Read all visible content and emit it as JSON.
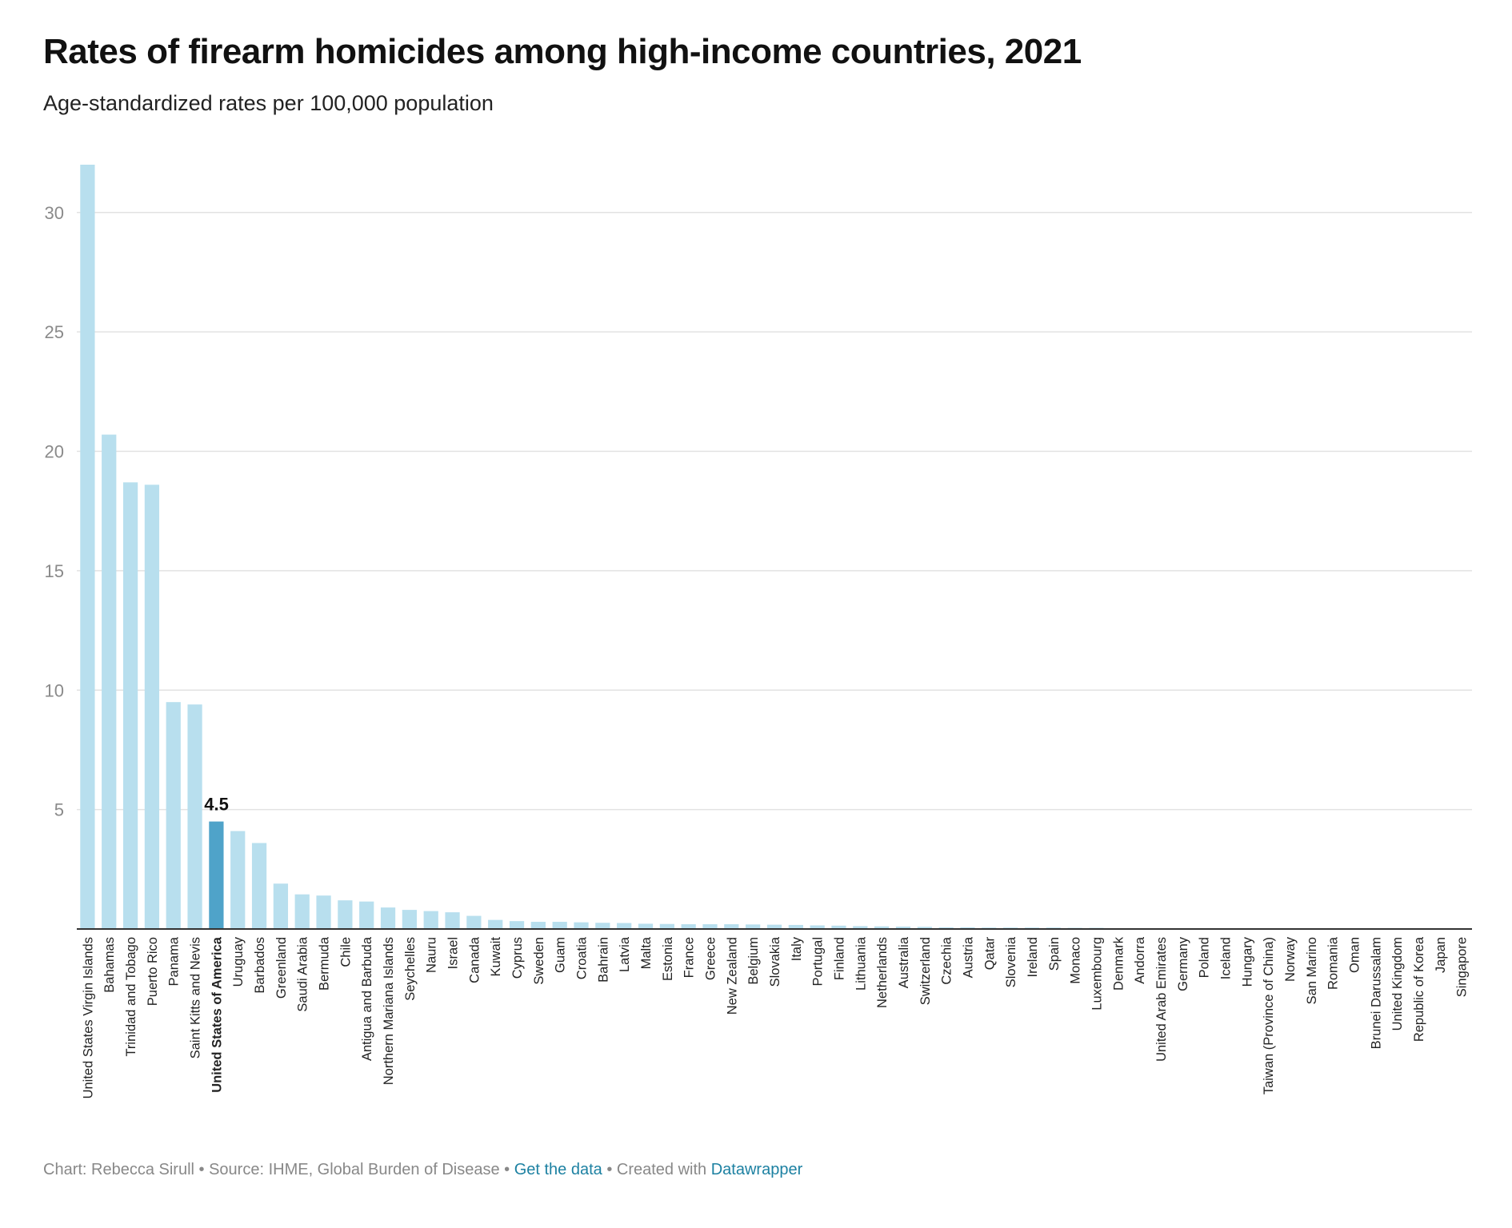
{
  "header": {
    "title": "Rates of firearm homicides among high-income countries, 2021",
    "subtitle": "Age-standardized rates per 100,000 population"
  },
  "footer": {
    "credit": "Chart: Rebecca Sirull • Source: IHME, Global Burden of Disease • ",
    "get_data_label": "Get the data",
    "created_with": " • Created with ",
    "tool_label": "Datawrapper"
  },
  "colors": {
    "bar": "#b8dfee",
    "highlight": "#4fa3c9",
    "grid": "#e2e2e2",
    "axis": "#333333",
    "tick_label": "#8a8a8a"
  },
  "chart_data": {
    "type": "bar",
    "title": "Rates of firearm homicides among high-income countries, 2021",
    "subtitle": "Age-standardized rates per 100,000 population",
    "ylim": [
      0,
      32
    ],
    "yticks": [
      5,
      10,
      15,
      20,
      25,
      30
    ],
    "grid": true,
    "highlight": {
      "category": "United States of America",
      "label": "4.5"
    },
    "categories": [
      "United States Virgin Islands",
      "Bahamas",
      "Trinidad and Tobago",
      "Puerto Rico",
      "Panama",
      "Saint Kitts and Nevis",
      "United States of America",
      "Uruguay",
      "Barbados",
      "Greenland",
      "Saudi Arabia",
      "Bermuda",
      "Chile",
      "Antigua and Barbuda",
      "Northern Mariana Islands",
      "Seychelles",
      "Nauru",
      "Israel",
      "Canada",
      "Kuwait",
      "Cyprus",
      "Sweden",
      "Guam",
      "Croatia",
      "Bahrain",
      "Latvia",
      "Malta",
      "Estonia",
      "France",
      "Greece",
      "New Zealand",
      "Belgium",
      "Slovakia",
      "Italy",
      "Portugal",
      "Finland",
      "Lithuania",
      "Netherlands",
      "Australia",
      "Switzerland",
      "Czechia",
      "Austria",
      "Qatar",
      "Slovenia",
      "Ireland",
      "Spain",
      "Monaco",
      "Luxembourg",
      "Denmark",
      "Andorra",
      "United Arab Emirates",
      "Germany",
      "Poland",
      "Iceland",
      "Hungary",
      "Taiwan (Province of China)",
      "Norway",
      "San Marino",
      "Romania",
      "Oman",
      "Brunei Darussalam",
      "United Kingdom",
      "Republic of Korea",
      "Japan",
      "Singapore"
    ],
    "values": [
      32.0,
      20.7,
      18.7,
      18.6,
      9.5,
      9.4,
      4.5,
      4.1,
      3.6,
      1.9,
      1.45,
      1.4,
      1.2,
      1.15,
      0.9,
      0.8,
      0.75,
      0.7,
      0.55,
      0.38,
      0.33,
      0.3,
      0.3,
      0.28,
      0.26,
      0.25,
      0.22,
      0.21,
      0.2,
      0.2,
      0.2,
      0.19,
      0.18,
      0.17,
      0.15,
      0.14,
      0.12,
      0.11,
      0.1,
      0.09,
      0.07,
      0.07,
      0.06,
      0.06,
      0.06,
      0.06,
      0.05,
      0.05,
      0.03,
      0.03,
      0.02,
      0.02,
      0.02,
      0.02,
      0.02,
      0.01,
      0.01,
      0.01,
      0.01,
      0.01,
      0.01,
      0.01,
      0.01,
      0.005,
      0.005
    ]
  }
}
